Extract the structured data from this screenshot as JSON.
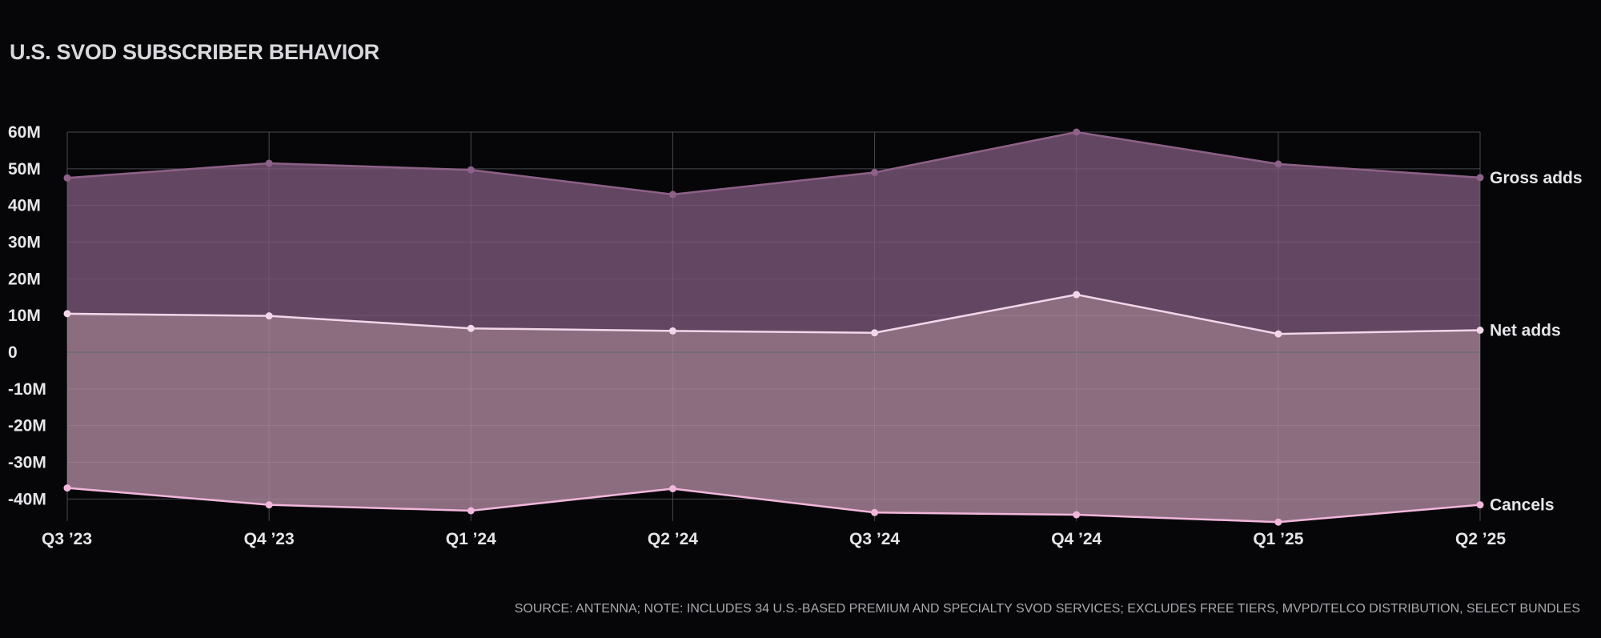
{
  "title": "U.S. SVOD SUBSCRIBER BEHAVIOR",
  "source": "SOURCE: ANTENNA; NOTE: INCLUDES 34 U.S.-BASED PREMIUM AND SPECIALTY SVOD SERVICES; EXCLUDES FREE TIERS, MVPD/TELCO DISTRIBUTION, SELECT BUNDLES",
  "colors": {
    "background": "#060609",
    "gross_area": "#684a67",
    "gross_line": "#8e6188",
    "net_line": "#f2d6ea",
    "cancels_area": "#937387",
    "cancels_line": "#f2b6dc",
    "grid": "#3a3a40",
    "zero_line": "#6a6a70"
  },
  "chart_data": {
    "type": "area",
    "title": "U.S. SVOD SUBSCRIBER BEHAVIOR",
    "xlabel": "",
    "ylabel": "",
    "categories": [
      "Q3 ’23",
      "Q4 ’23",
      "Q1 ’24",
      "Q2 ’24",
      "Q3 ’24",
      "Q4 ’24",
      "Q1 ’25",
      "Q2 ’25"
    ],
    "y_ticks": [
      60,
      50,
      40,
      30,
      20,
      10,
      0,
      -10,
      -20,
      -30,
      -40
    ],
    "y_tick_labels": [
      "60M",
      "50M",
      "40M",
      "30M",
      "20M",
      "10M",
      "0",
      "-10M",
      "-20M",
      "-30M",
      "-40M"
    ],
    "ylim": [
      -46,
      60
    ],
    "unit": "M",
    "grid": true,
    "series": [
      {
        "name": "Gross adds",
        "values": [
          47.5,
          51.5,
          49.7,
          43.0,
          49.0,
          60.0,
          51.3,
          47.6
        ]
      },
      {
        "name": "Net adds",
        "values": [
          10.5,
          9.9,
          6.5,
          5.8,
          5.3,
          15.7,
          5.0,
          6.0
        ]
      },
      {
        "name": "Cancels",
        "values": [
          -37.0,
          -41.6,
          -43.2,
          -37.2,
          -43.7,
          -44.3,
          -46.3,
          -41.6
        ]
      }
    ]
  }
}
